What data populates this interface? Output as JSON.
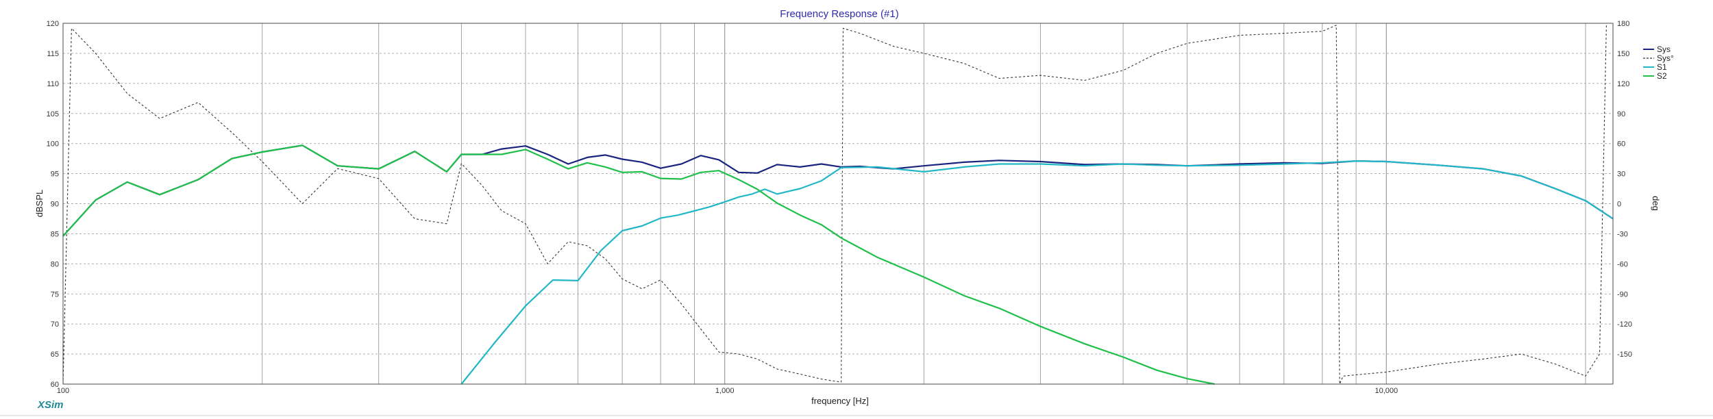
{
  "app": {
    "brand": "XSim"
  },
  "colors": {
    "title": "#2b2bb3",
    "brand": "#1f8a96",
    "grid": "#9a9a9a",
    "Sys": "#1a237e",
    "Sys_phase": "#333333",
    "S1": "#22b7c6",
    "S2": "#1fbf4a"
  },
  "chart_data": {
    "type": "line",
    "title": "Frequency Response (#1)",
    "xlabel": "frequency [Hz]",
    "ylabel": "dBSPL",
    "y2label": "deg",
    "x_scale": "log",
    "xlim": [
      100,
      22000
    ],
    "ylim": [
      60,
      120
    ],
    "y2lim": [
      -180,
      180
    ],
    "x_tick_labels": [
      {
        "value": 100,
        "label": "100"
      },
      {
        "value": 1000,
        "label": "1,000"
      },
      {
        "value": 10000,
        "label": "10,000"
      }
    ],
    "y_ticks": [
      60,
      65,
      70,
      75,
      80,
      85,
      90,
      95,
      100,
      105,
      110,
      115,
      120
    ],
    "y2_ticks": [
      180,
      150,
      120,
      90,
      60,
      30,
      0,
      -30,
      -60,
      -90,
      -120,
      -150
    ],
    "y2_tick_labels": [
      "180",
      "150",
      "120",
      "90",
      "60",
      "30",
      "0",
      "-30",
      "-60",
      "-90",
      "-120",
      "-150"
    ],
    "grid": true,
    "legend": {
      "placement": "right",
      "entries": [
        "Sys",
        "Sys°",
        "S1",
        "S2"
      ]
    },
    "series": [
      {
        "name": "Sys",
        "axis": "y",
        "x": [
          100,
          112,
          125,
          140,
          160,
          180,
          200,
          230,
          260,
          300,
          340,
          380,
          400,
          430,
          460,
          500,
          540,
          580,
          620,
          660,
          700,
          750,
          800,
          860,
          920,
          980,
          1050,
          1120,
          1200,
          1300,
          1400,
          1500,
          1600,
          1800,
          2000,
          2300,
          2600,
          3000,
          3500,
          4000,
          4500,
          5000,
          6000,
          7000,
          8000,
          9000,
          10000,
          12000,
          14000,
          16000,
          18000,
          20000,
          22000
        ],
        "values": [
          84.6,
          90.6,
          93.6,
          91.5,
          94,
          97.5,
          98.6,
          99.7,
          96.3,
          95.8,
          98.7,
          95.3,
          98.2,
          98.2,
          99.1,
          99.6,
          98.2,
          96.6,
          97.7,
          98.1,
          97.4,
          96.9,
          95.9,
          96.6,
          98,
          97.3,
          95.2,
          95.1,
          96.5,
          96.1,
          96.6,
          96.1,
          96.2,
          95.8,
          96.3,
          96.9,
          97.2,
          97,
          96.5,
          96.6,
          96.5,
          96.3,
          96.6,
          96.8,
          96.7,
          97.1,
          97,
          96.4,
          95.8,
          94.6,
          92.5,
          90.5,
          87.5
        ]
      },
      {
        "name": "Sys°",
        "axis": "y2",
        "x": [
          100,
          103,
          112,
          125,
          140,
          160,
          180,
          200,
          230,
          260,
          300,
          340,
          380,
          400,
          430,
          460,
          500,
          540,
          580,
          620,
          660,
          700,
          750,
          800,
          860,
          920,
          980,
          1050,
          1120,
          1200,
          1300,
          1400,
          1500,
          1510,
          1600,
          1800,
          2000,
          2300,
          2600,
          3000,
          3500,
          4000,
          4500,
          5000,
          6000,
          7000,
          8000,
          8400,
          8500,
          8600,
          10000,
          12000,
          14000,
          16000,
          18000,
          20000,
          21000,
          21500
        ],
        "values": [
          -180,
          175,
          150,
          110,
          85,
          101,
          71,
          42,
          0,
          35,
          25,
          -15,
          -20,
          40,
          18,
          -7,
          -20,
          -60,
          -38,
          -42,
          -55,
          -75,
          -85,
          -76,
          -100,
          -125,
          -148,
          -150,
          -155,
          -165,
          -170,
          -175,
          -178,
          175,
          170,
          157,
          150,
          140,
          125,
          128,
          123,
          133,
          150,
          160,
          168,
          170,
          172,
          178,
          -180,
          -172,
          -168,
          -160,
          -155,
          -150,
          -160,
          -172,
          -150,
          178
        ]
      },
      {
        "name": "S1",
        "axis": "y",
        "x": [
          400,
          450,
          500,
          550,
          600,
          650,
          700,
          750,
          800,
          850,
          900,
          950,
          1000,
          1050,
          1100,
          1150,
          1200,
          1300,
          1400,
          1500,
          1700,
          2000,
          2300,
          2600,
          3000,
          3500,
          4000,
          4500,
          5000,
          6000,
          7000,
          8000,
          9000,
          10000,
          12000,
          14000,
          16000,
          18000,
          20000,
          22000
        ],
        "values": [
          59.5,
          67,
          73,
          77.3,
          77.2,
          82.2,
          85.5,
          86.3,
          87.6,
          88.1,
          88.8,
          89.5,
          90.3,
          91.1,
          91.6,
          92.4,
          91.6,
          92.5,
          93.8,
          96,
          96.1,
          95.3,
          96.1,
          96.6,
          96.6,
          96.3,
          96.6,
          96.4,
          96.3,
          96.4,
          96.6,
          96.8,
          97.1,
          97,
          96.4,
          95.8,
          94.6,
          92.5,
          90.5,
          87.5
        ]
      },
      {
        "name": "S2",
        "axis": "y",
        "x": [
          100,
          112,
          125,
          140,
          160,
          180,
          200,
          230,
          260,
          300,
          340,
          380,
          400,
          430,
          460,
          500,
          540,
          580,
          620,
          660,
          700,
          750,
          800,
          860,
          920,
          980,
          1050,
          1120,
          1200,
          1300,
          1400,
          1500,
          1700,
          2000,
          2300,
          2600,
          3000,
          3500,
          4000,
          4500,
          5000,
          5500
        ],
        "values": [
          84.6,
          90.6,
          93.6,
          91.5,
          94,
          97.5,
          98.6,
          99.7,
          96.3,
          95.8,
          98.7,
          95.3,
          98.2,
          98.2,
          98.2,
          99,
          97.4,
          95.8,
          96.8,
          96.1,
          95.2,
          95.3,
          94.2,
          94.1,
          95.2,
          95.5,
          94,
          92.4,
          90.1,
          88.1,
          86.5,
          84.3,
          81.1,
          77.8,
          74.7,
          72.6,
          69.6,
          66.7,
          64.5,
          62.3,
          60.9,
          59.8
        ]
      }
    ]
  }
}
